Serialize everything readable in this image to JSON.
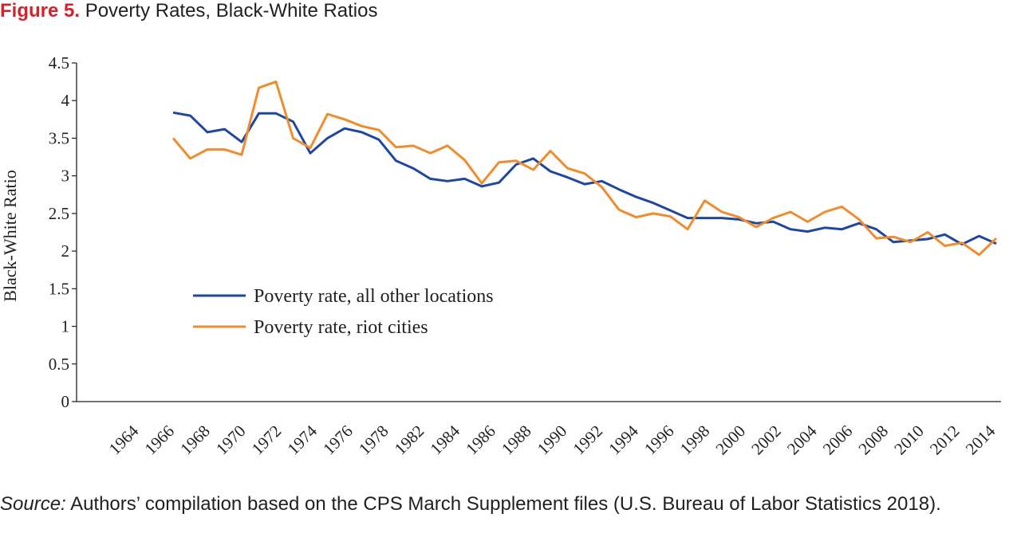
{
  "figure": {
    "label": "Figure 5.",
    "title": "Poverty Rates, Black-White Ratios"
  },
  "source": {
    "label": "Source:",
    "text": "Authors’ compilation based on the CPS March Supplement files (U.S. Bureau of Labor Statistics 2018)."
  },
  "chart_data": {
    "type": "line",
    "title": "Poverty Rates, Black-White Ratios",
    "xlabel": "",
    "ylabel": "Black-White Ratio",
    "ylim": [
      0,
      4.5
    ],
    "yticks": [
      "0",
      "0.5",
      "1",
      "1.5",
      "2",
      "2.5",
      "3",
      "3.5",
      "4",
      "4.5"
    ],
    "x_tick_labels": [
      "1964",
      "1966",
      "1968",
      "1970",
      "1972",
      "1974",
      "1976",
      "1978",
      "1982",
      "1984",
      "1986",
      "1988",
      "1990",
      "1992",
      "1994",
      "1996",
      "1998",
      "2000",
      "2002",
      "2004",
      "2006",
      "2008",
      "2010",
      "2012",
      "2014"
    ],
    "grid": false,
    "legend_position": "center-left",
    "series": [
      {
        "name": "Poverty rate, all other locations",
        "color": "#1f47a0",
        "values": [
          3.84,
          3.8,
          3.58,
          3.62,
          3.45,
          3.83,
          3.83,
          3.72,
          3.3,
          3.5,
          3.63,
          3.58,
          3.48,
          3.2,
          3.1,
          2.96,
          2.93,
          2.96,
          2.86,
          2.91,
          3.15,
          3.23,
          3.06,
          2.98,
          2.89,
          2.93,
          2.82,
          2.72,
          2.64,
          2.54,
          2.44,
          2.44,
          2.44,
          2.42,
          2.37,
          2.39,
          2.29,
          2.26,
          2.31,
          2.29,
          2.37,
          2.29,
          2.12,
          2.14,
          2.16,
          2.22,
          2.09,
          2.2,
          2.1
        ]
      },
      {
        "name": "Poverty rate, riot cities",
        "color": "#ef8c2e",
        "values": [
          3.5,
          3.23,
          3.35,
          3.35,
          3.28,
          4.17,
          4.25,
          3.5,
          3.37,
          3.82,
          3.75,
          3.66,
          3.61,
          3.38,
          3.4,
          3.3,
          3.4,
          3.21,
          2.9,
          3.18,
          3.2,
          3.08,
          3.33,
          3.1,
          3.03,
          2.85,
          2.55,
          2.45,
          2.5,
          2.46,
          2.29,
          2.67,
          2.52,
          2.45,
          2.32,
          2.44,
          2.52,
          2.39,
          2.52,
          2.59,
          2.42,
          2.17,
          2.19,
          2.12,
          2.25,
          2.07,
          2.11,
          1.95,
          2.17
        ]
      }
    ]
  }
}
